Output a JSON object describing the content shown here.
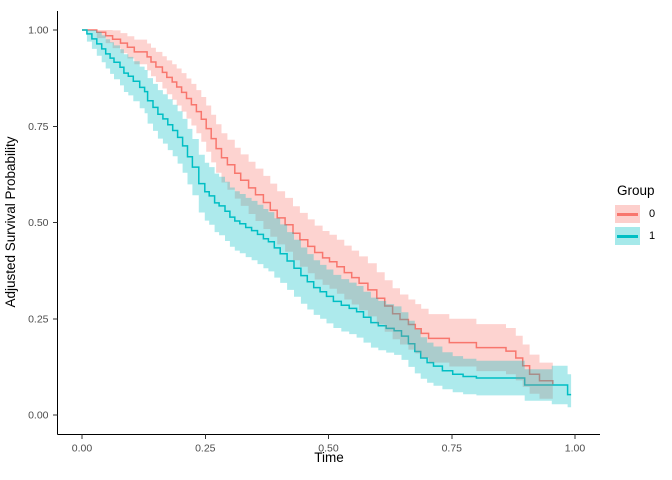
{
  "chart_data": {
    "type": "line",
    "subtype": "step-survival-curves-with-ci-ribbons",
    "title": "",
    "xlabel": "Time",
    "ylabel": "Adjusted Survival Probability",
    "xlim": [
      0,
      1
    ],
    "ylim": [
      0,
      1
    ],
    "grid": false,
    "x_ticks": {
      "values": [
        0,
        0.25,
        0.5,
        0.75,
        1.0
      ],
      "labels": [
        "0.00",
        "0.25",
        "0.50",
        "0.75",
        "1.00"
      ]
    },
    "y_ticks": {
      "values": [
        0,
        0.25,
        0.5,
        0.75,
        1.0
      ],
      "labels": [
        "0.00",
        "0.25",
        "0.50",
        "0.75",
        "1.00"
      ]
    },
    "legend": {
      "title": "Group",
      "position": "right",
      "entries": [
        {
          "label": "0",
          "line_color": "#F8766D",
          "fill": "#F8766D"
        },
        {
          "label": "1",
          "line_color": "#00BFC4",
          "fill": "#00BFC4"
        }
      ]
    },
    "series": [
      {
        "name": "0",
        "line_color": "#F8766D",
        "fill": "#F8766D",
        "fill_opacity": 0.32,
        "points": [
          [
            0.0,
            1.0,
            1.0,
            1.0
          ],
          [
            0.03,
            0.994,
            0.979,
            1.0
          ],
          [
            0.048,
            0.985,
            0.966,
            1.0
          ],
          [
            0.062,
            0.976,
            0.953,
            0.999
          ],
          [
            0.078,
            0.966,
            0.94,
            0.992
          ],
          [
            0.092,
            0.955,
            0.926,
            0.984
          ],
          [
            0.106,
            0.943,
            0.911,
            0.975
          ],
          [
            0.132,
            0.93,
            0.895,
            0.965
          ],
          [
            0.14,
            0.917,
            0.88,
            0.954
          ],
          [
            0.15,
            0.904,
            0.865,
            0.943
          ],
          [
            0.163,
            0.89,
            0.848,
            0.932
          ],
          [
            0.172,
            0.877,
            0.833,
            0.921
          ],
          [
            0.183,
            0.865,
            0.819,
            0.911
          ],
          [
            0.192,
            0.852,
            0.804,
            0.9
          ],
          [
            0.202,
            0.838,
            0.788,
            0.888
          ],
          [
            0.212,
            0.822,
            0.77,
            0.874
          ],
          [
            0.222,
            0.806,
            0.752,
            0.86
          ],
          [
            0.232,
            0.788,
            0.732,
            0.844
          ],
          [
            0.242,
            0.768,
            0.71,
            0.826
          ],
          [
            0.252,
            0.744,
            0.684,
            0.804
          ],
          [
            0.262,
            0.718,
            0.656,
            0.78
          ],
          [
            0.272,
            0.692,
            0.629,
            0.755
          ],
          [
            0.283,
            0.668,
            0.604,
            0.732
          ],
          [
            0.295,
            0.65,
            0.585,
            0.715
          ],
          [
            0.31,
            0.628,
            0.562,
            0.694
          ],
          [
            0.322,
            0.61,
            0.543,
            0.677
          ],
          [
            0.338,
            0.59,
            0.522,
            0.658
          ],
          [
            0.352,
            0.572,
            0.504,
            0.64
          ],
          [
            0.368,
            0.552,
            0.483,
            0.621
          ],
          [
            0.382,
            0.532,
            0.463,
            0.601
          ],
          [
            0.396,
            0.512,
            0.443,
            0.581
          ],
          [
            0.412,
            0.494,
            0.424,
            0.564
          ],
          [
            0.428,
            0.472,
            0.402,
            0.542
          ],
          [
            0.442,
            0.455,
            0.385,
            0.525
          ],
          [
            0.458,
            0.438,
            0.368,
            0.508
          ],
          [
            0.472,
            0.422,
            0.352,
            0.492
          ],
          [
            0.488,
            0.408,
            0.338,
            0.478
          ],
          [
            0.502,
            0.398,
            0.328,
            0.468
          ],
          [
            0.517,
            0.385,
            0.315,
            0.455
          ],
          [
            0.532,
            0.37,
            0.3,
            0.44
          ],
          [
            0.547,
            0.357,
            0.287,
            0.427
          ],
          [
            0.562,
            0.342,
            0.272,
            0.412
          ],
          [
            0.58,
            0.325,
            0.256,
            0.394
          ],
          [
            0.598,
            0.303,
            0.235,
            0.371
          ],
          [
            0.614,
            0.283,
            0.216,
            0.35
          ],
          [
            0.63,
            0.263,
            0.197,
            0.329
          ],
          [
            0.645,
            0.248,
            0.183,
            0.313
          ],
          [
            0.662,
            0.235,
            0.17,
            0.3
          ],
          [
            0.676,
            0.224,
            0.16,
            0.288
          ],
          [
            0.688,
            0.212,
            0.148,
            0.276
          ],
          [
            0.703,
            0.199,
            0.136,
            0.262
          ],
          [
            0.745,
            0.188,
            0.126,
            0.25
          ],
          [
            0.8,
            0.175,
            0.114,
            0.236
          ],
          [
            0.86,
            0.166,
            0.106,
            0.226
          ],
          [
            0.88,
            0.148,
            0.09,
            0.206
          ],
          [
            0.894,
            0.128,
            0.073,
            0.183
          ],
          [
            0.908,
            0.106,
            0.055,
            0.157
          ],
          [
            0.928,
            0.089,
            0.042,
            0.136
          ],
          [
            0.955,
            0.08,
            0.035,
            0.125
          ]
        ]
      },
      {
        "name": "1",
        "line_color": "#00BFC4",
        "fill": "#00BFC4",
        "fill_opacity": 0.32,
        "points": [
          [
            0.0,
            1.0,
            1.0,
            1.0
          ],
          [
            0.01,
            0.99,
            0.97,
            1.0
          ],
          [
            0.02,
            0.977,
            0.951,
            1.0
          ],
          [
            0.03,
            0.964,
            0.933,
            0.995
          ],
          [
            0.04,
            0.951,
            0.916,
            0.986
          ],
          [
            0.048,
            0.938,
            0.9,
            0.976
          ],
          [
            0.057,
            0.927,
            0.886,
            0.968
          ],
          [
            0.065,
            0.916,
            0.872,
            0.96
          ],
          [
            0.077,
            0.903,
            0.856,
            0.95
          ],
          [
            0.085,
            0.888,
            0.839,
            0.937
          ],
          [
            0.094,
            0.88,
            0.83,
            0.93
          ],
          [
            0.104,
            0.867,
            0.815,
            0.919
          ],
          [
            0.117,
            0.851,
            0.797,
            0.905
          ],
          [
            0.127,
            0.84,
            0.784,
            0.896
          ],
          [
            0.133,
            0.816,
            0.757,
            0.875
          ],
          [
            0.144,
            0.799,
            0.738,
            0.86
          ],
          [
            0.154,
            0.781,
            0.718,
            0.844
          ],
          [
            0.164,
            0.769,
            0.705,
            0.833
          ],
          [
            0.174,
            0.754,
            0.688,
            0.82
          ],
          [
            0.184,
            0.739,
            0.672,
            0.806
          ],
          [
            0.194,
            0.721,
            0.653,
            0.789
          ],
          [
            0.204,
            0.699,
            0.629,
            0.769
          ],
          [
            0.214,
            0.671,
            0.599,
            0.743
          ],
          [
            0.224,
            0.644,
            0.571,
            0.717
          ],
          [
            0.237,
            0.601,
            0.526,
            0.676
          ],
          [
            0.249,
            0.58,
            0.505,
            0.655
          ],
          [
            0.258,
            0.569,
            0.494,
            0.644
          ],
          [
            0.269,
            0.551,
            0.475,
            0.627
          ],
          [
            0.278,
            0.543,
            0.467,
            0.619
          ],
          [
            0.29,
            0.529,
            0.452,
            0.606
          ],
          [
            0.3,
            0.514,
            0.437,
            0.591
          ],
          [
            0.31,
            0.504,
            0.427,
            0.581
          ],
          [
            0.32,
            0.497,
            0.42,
            0.574
          ],
          [
            0.332,
            0.487,
            0.41,
            0.564
          ],
          [
            0.344,
            0.479,
            0.402,
            0.556
          ],
          [
            0.356,
            0.469,
            0.392,
            0.546
          ],
          [
            0.368,
            0.458,
            0.381,
            0.535
          ],
          [
            0.378,
            0.45,
            0.373,
            0.527
          ],
          [
            0.39,
            0.434,
            0.357,
            0.511
          ],
          [
            0.402,
            0.419,
            0.343,
            0.495
          ],
          [
            0.416,
            0.4,
            0.325,
            0.475
          ],
          [
            0.43,
            0.381,
            0.307,
            0.455
          ],
          [
            0.444,
            0.362,
            0.289,
            0.435
          ],
          [
            0.457,
            0.346,
            0.274,
            0.418
          ],
          [
            0.47,
            0.331,
            0.26,
            0.402
          ],
          [
            0.483,
            0.32,
            0.25,
            0.39
          ],
          [
            0.496,
            0.308,
            0.238,
            0.378
          ],
          [
            0.51,
            0.295,
            0.226,
            0.364
          ],
          [
            0.526,
            0.285,
            0.217,
            0.353
          ],
          [
            0.542,
            0.277,
            0.21,
            0.344
          ],
          [
            0.557,
            0.268,
            0.201,
            0.335
          ],
          [
            0.571,
            0.254,
            0.188,
            0.32
          ],
          [
            0.586,
            0.24,
            0.175,
            0.305
          ],
          [
            0.601,
            0.232,
            0.168,
            0.296
          ],
          [
            0.617,
            0.225,
            0.162,
            0.288
          ],
          [
            0.633,
            0.219,
            0.156,
            0.282
          ],
          [
            0.648,
            0.205,
            0.143,
            0.267
          ],
          [
            0.662,
            0.185,
            0.125,
            0.245
          ],
          [
            0.675,
            0.165,
            0.108,
            0.222
          ],
          [
            0.687,
            0.148,
            0.094,
            0.202
          ],
          [
            0.7,
            0.136,
            0.084,
            0.188
          ],
          [
            0.713,
            0.127,
            0.076,
            0.178
          ],
          [
            0.731,
            0.115,
            0.067,
            0.163
          ],
          [
            0.752,
            0.106,
            0.059,
            0.153
          ],
          [
            0.773,
            0.1,
            0.054,
            0.146
          ],
          [
            0.8,
            0.096,
            0.051,
            0.141
          ],
          [
            0.898,
            0.078,
            0.037,
            0.119
          ],
          [
            0.953,
            0.078,
            0.028,
            0.128
          ],
          [
            0.985,
            0.053,
            0.02,
            0.106
          ],
          [
            0.992,
            0.053,
            0.02,
            0.106
          ]
        ]
      }
    ]
  }
}
